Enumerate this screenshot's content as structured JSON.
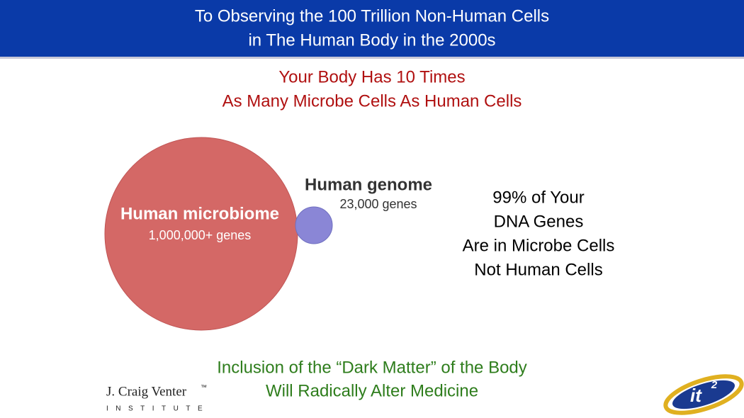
{
  "header": {
    "title_lines": [
      "To Observing the 100 Trillion Non-Human Cells",
      "in The Human Body in the 2000s"
    ]
  },
  "subtitle_lines": [
    "Your Body Has 10 Times",
    "As Many Microbe Cells As Human Cells"
  ],
  "diagram": {
    "large_circle": {
      "label": "Human microbiome",
      "sublabel": "1,000,000+ genes"
    },
    "small_circle": {
      "label": "Human genome",
      "sublabel": "23,000 genes"
    }
  },
  "callout_lines": [
    "99% of Your",
    "DNA Genes",
    "Are in Microbe Cells",
    "Not Human Cells"
  ],
  "conclusion_lines": [
    "Inclusion of the “Dark Matter” of the Body",
    "Will Radically Alter Medicine"
  ],
  "logos": {
    "left": {
      "name": "J. Craig Venter",
      "mark": "™",
      "tagline": "INSTITUTE"
    },
    "right": {
      "text": "it",
      "superscript": "2"
    }
  }
}
